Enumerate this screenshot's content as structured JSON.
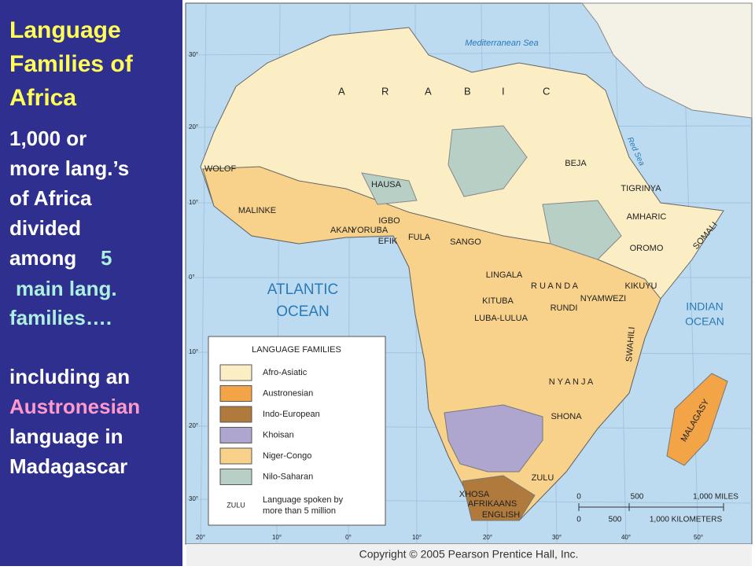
{
  "panel": {
    "title": [
      "Language",
      "Families of",
      "Africa"
    ],
    "intro": [
      "1,000 or",
      "more lang.’s",
      "of Africa",
      "divided"
    ],
    "among": "among",
    "number": "5",
    "families": [
      "main lang.",
      "families…."
    ],
    "including": "including  an",
    "highlight": "Austronesian",
    "closing": [
      "language  in",
      "Madagascar"
    ]
  },
  "map": {
    "arabic": [
      "A",
      "R",
      "A",
      "B",
      "I",
      "C"
    ],
    "seas": [
      "Mediterranean Sea",
      "Red Sea"
    ],
    "oceans": [
      [
        "ATLANTIC",
        "OCEAN"
      ],
      [
        "INDIAN",
        "OCEAN"
      ]
    ],
    "languages": [
      "WOLOF",
      "HAUSA",
      "MALINKE",
      "AKAN",
      "YORUBA",
      "IGBO",
      "EFIK",
      "FULA",
      "SANGO",
      "BEJA",
      "TIGRINYA",
      "AMHARIC",
      "OROMO",
      "SOMALI",
      "LINGALA",
      "KITUBA",
      "LUBA-LULUA",
      "R U A N D A",
      "RUNDI",
      "NYAMWEZI",
      "KIKUYU",
      "SWAHILI",
      "N Y A N J A",
      "SHONA",
      "ZULU",
      "XHOSA",
      "AFRIKAANS",
      "ENGLISH",
      "MALAGASY"
    ],
    "lat_labels": [
      "30°",
      "20°",
      "10°",
      "0°",
      "10°",
      "20°",
      "30°"
    ],
    "lon_labels": [
      "20°",
      "10°",
      "0°",
      "10°",
      "20°",
      "30°",
      "40°",
      "50°"
    ],
    "legend": {
      "title": "LANGUAGE FAMILIES",
      "items": [
        {
          "name": "Afro-Asiatic",
          "color": "#fbedc4"
        },
        {
          "name": "Austronesian",
          "color": "#f2a447"
        },
        {
          "name": "Indo-European",
          "color": "#b07a3c"
        },
        {
          "name": "Khoisan",
          "color": "#aea6cf"
        },
        {
          "name": "Niger-Congo",
          "color": "#f8d28a"
        },
        {
          "name": "Nilo-Saharan",
          "color": "#b8cfc6"
        }
      ],
      "example": "ZULU",
      "example_text": [
        "Language spoken by",
        "more than 5 million"
      ]
    },
    "scale": {
      "miles": [
        "0",
        "500",
        "1,000 MILES"
      ],
      "km": [
        "0",
        "500",
        "1,000 KILOMETERS"
      ]
    },
    "copyright": "Copyright © 2005 Pearson Prentice Hall, Inc."
  }
}
